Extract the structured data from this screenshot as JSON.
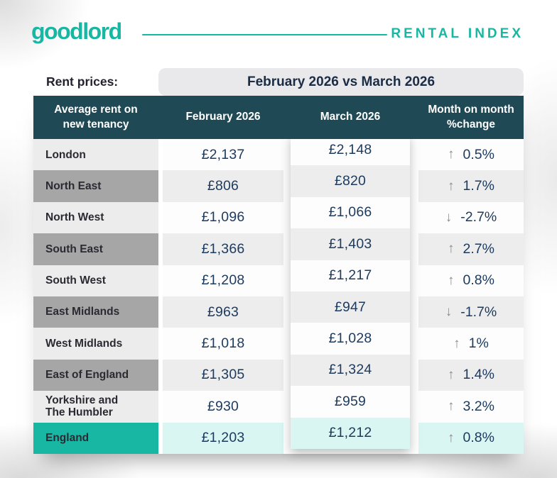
{
  "brand": {
    "logo": "goodlord",
    "tagline": "RENTAL INDEX",
    "teal": "#18b7a3"
  },
  "subheader": {
    "label": "Rent prices:",
    "period": "February 2026 vs March 2026"
  },
  "colors": {
    "header_dark": "#1f4955",
    "value_navy": "#1c3a5e",
    "region_light": "#ececec",
    "region_dark": "#a6a6a6",
    "row_light": "#fdfdfd",
    "row_gray": "#ededed",
    "england_teal": "#18b7a3",
    "england_tint": "#d9f6f2",
    "arrow_gray": "#8c8c8c",
    "pill_bg": "#e9e9eb"
  },
  "arrows": {
    "up": "↑",
    "down": "↓"
  },
  "chart_data": {
    "type": "table",
    "title": "February 2026 vs March 2026",
    "columns": [
      "Average rent on new tenancy",
      "February 2026",
      "March 2026",
      "Month on month %change"
    ],
    "rows": [
      {
        "region": "London",
        "feb": "£2,137",
        "mar": "£2,148",
        "direction": "up",
        "change": "0.5%"
      },
      {
        "region": "North East",
        "feb": "£806",
        "mar": "£820",
        "direction": "up",
        "change": "1.7%"
      },
      {
        "region": "North West",
        "feb": "£1,096",
        "mar": "£1,066",
        "direction": "down",
        "change": "-2.7%"
      },
      {
        "region": "South East",
        "feb": "£1,366",
        "mar": "£1,403",
        "direction": "up",
        "change": "2.7%"
      },
      {
        "region": "South West",
        "feb": "£1,208",
        "mar": "£1,217",
        "direction": "up",
        "change": "0.8%"
      },
      {
        "region": "East Midlands",
        "feb": "£963",
        "mar": "£947",
        "direction": "down",
        "change": "-1.7%"
      },
      {
        "region": "West Midlands",
        "feb": "£1,018",
        "mar": "£1,028",
        "direction": "up",
        "change": "1%"
      },
      {
        "region": "East of England",
        "feb": "£1,305",
        "mar": "£1,324",
        "direction": "up",
        "change": "1.4%"
      },
      {
        "region": "Yorkshire and\nThe Humbler",
        "feb": "£930",
        "mar": "£959",
        "direction": "up",
        "change": "3.2%"
      },
      {
        "region": "England",
        "feb": "£1,203",
        "mar": "£1,212",
        "direction": "up",
        "change": "0.8%"
      }
    ]
  }
}
